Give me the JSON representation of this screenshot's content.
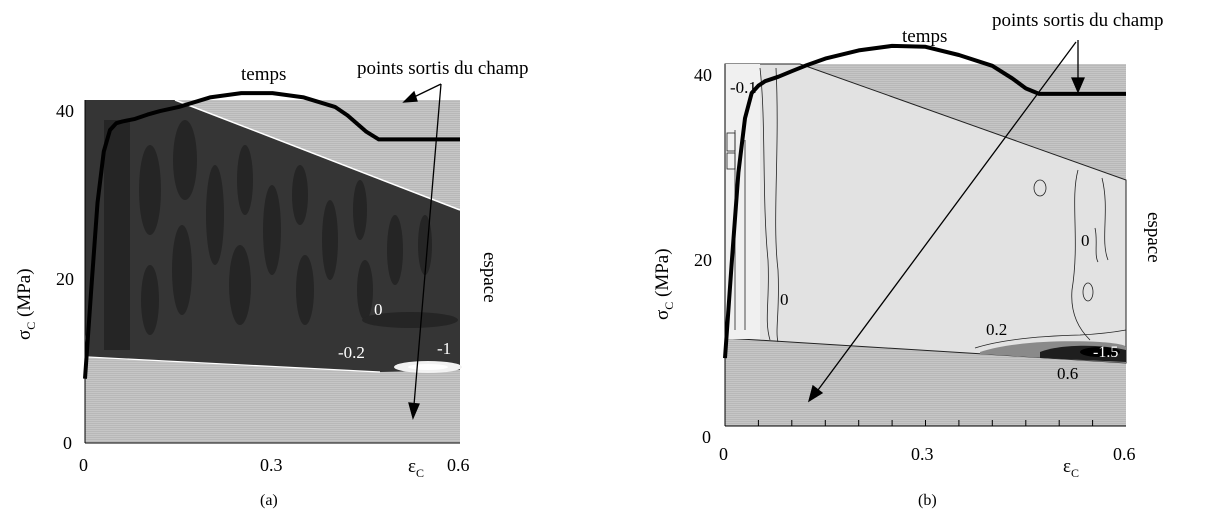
{
  "colors": {
    "masked_gray": "#c6c6c6",
    "field_dark_a": "#353535",
    "field_darker_a": "#262626",
    "field_light_b": "#e2e2e2",
    "curve": "#000000",
    "background": "#ffffff"
  },
  "annotations": {
    "temps": "temps",
    "points_out": "points sortis du champ",
    "espace": "espace"
  },
  "chart_data": [
    {
      "panel": "(a)",
      "type": "line",
      "xlabel_sym": "ε",
      "xlabel_sub": "C",
      "ylabel_sym": "σ",
      "ylabel_sub": "C",
      "ylabel_unit": " (MPa)",
      "xlim": [
        0,
        0.6
      ],
      "ylim": [
        0,
        40
      ],
      "xticks": [
        "0",
        "0.3",
        "0.6"
      ],
      "yticks": [
        "0",
        "20",
        "40"
      ],
      "contour_labels": [
        "0",
        "-0.2",
        "-1"
      ],
      "series": [
        {
          "x": [
            0.0,
            0.01,
            0.02,
            0.03,
            0.04,
            0.05,
            0.06,
            0.08,
            0.1,
            0.12,
            0.15,
            0.2,
            0.25,
            0.3,
            0.35,
            0.4,
            0.42,
            0.45,
            0.47,
            0.5,
            0.55,
            0.6
          ],
          "y": [
            7.5,
            18,
            28,
            34,
            36.5,
            37.3,
            37.5,
            37.8,
            38.3,
            38.7,
            39.2,
            40.3,
            40.8,
            40.8,
            40.3,
            39.2,
            38.2,
            36.3,
            35.4,
            35.4,
            35.4,
            35.4
          ]
        }
      ]
    },
    {
      "panel": "(b)",
      "type": "line",
      "xlabel_sym": "ε",
      "xlabel_sub": "C",
      "ylabel_sym": "σ",
      "ylabel_sub": "C",
      "ylabel_unit": " (MPa)",
      "xlim": [
        0,
        0.6
      ],
      "ylim": [
        0,
        40
      ],
      "xticks": [
        "0",
        "0.3",
        "0.6"
      ],
      "yticks": [
        "0",
        "20",
        "40"
      ],
      "contour_labels": [
        "-0.1",
        "0",
        "0",
        "0.2",
        "-1.5",
        "0.6"
      ],
      "series": [
        {
          "x": [
            0.0,
            0.01,
            0.02,
            0.03,
            0.04,
            0.05,
            0.06,
            0.08,
            0.1,
            0.12,
            0.15,
            0.2,
            0.25,
            0.3,
            0.35,
            0.4,
            0.43,
            0.45,
            0.47,
            0.5,
            0.55,
            0.6
          ],
          "y": [
            7.5,
            18,
            28,
            34,
            36.8,
            37.6,
            38.1,
            38.6,
            39.2,
            39.8,
            40.6,
            41.5,
            42.0,
            41.9,
            41.0,
            39.8,
            38.4,
            37.3,
            36.7,
            36.7,
            36.7,
            36.7
          ]
        }
      ]
    }
  ],
  "captions": [
    "(a)",
    "(b)"
  ]
}
